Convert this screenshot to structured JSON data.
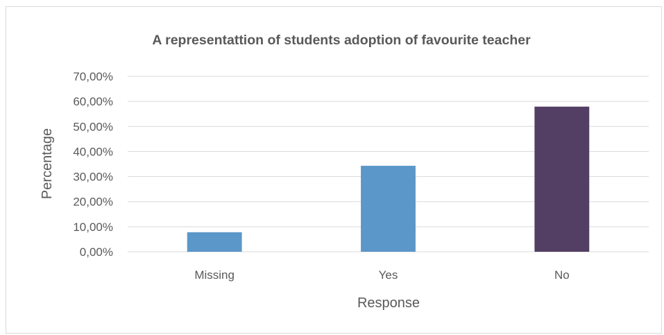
{
  "chart_data": {
    "type": "bar",
    "title": "A representattion of students adoption of favourite teacher",
    "xlabel": "Response",
    "ylabel": "Percentage",
    "categories": [
      "Missing",
      "Yes",
      "No"
    ],
    "values": [
      7.8,
      34.3,
      57.9
    ],
    "bar_colors": [
      "#5b97c9",
      "#5b97c9",
      "#533f63"
    ],
    "ylim": [
      0,
      70
    ],
    "yticks": [
      0,
      10,
      20,
      30,
      40,
      50,
      60,
      70
    ],
    "ytick_labels": [
      "0,00%",
      "10,00%",
      "20,00%",
      "30,00%",
      "40,00%",
      "50,00%",
      "60,00%",
      "70,00%"
    ],
    "grid": true,
    "legend": "none"
  }
}
